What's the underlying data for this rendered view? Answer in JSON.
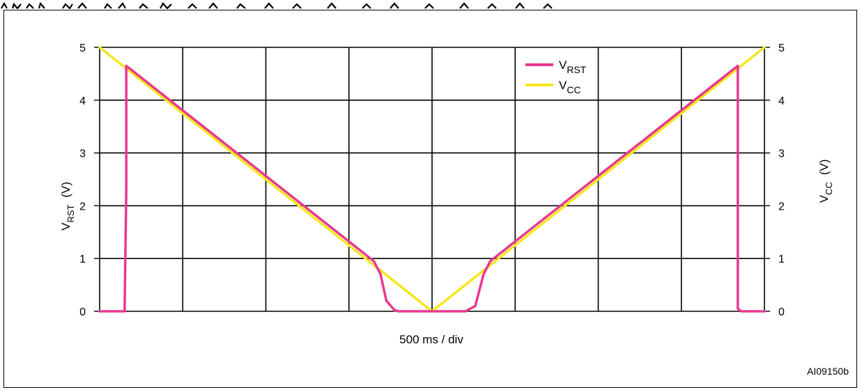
{
  "chart_data": {
    "type": "line",
    "title": "",
    "xlabel": "500 ms / div",
    "ylabel_left": {
      "main": "V",
      "sub": "RST",
      "unit": "(V)"
    },
    "ylabel_right": {
      "main": "V",
      "sub": "CC",
      "unit": "(V)"
    },
    "ylim": [
      0,
      5
    ],
    "yticks": [
      "0",
      "1",
      "2",
      "3",
      "4",
      "5"
    ],
    "x_divisions": 8,
    "x_range_div": [
      0,
      8
    ],
    "grid": true,
    "legend_position": "top-center",
    "series": [
      {
        "name": "V_RST",
        "name_main": "V",
        "name_sub": "RST",
        "color": "#e8388f",
        "x": [
          0,
          0.3,
          0.32,
          0.32,
          3.3,
          3.38,
          3.45,
          3.55,
          3.6,
          4.0,
          4.4,
          4.52,
          4.62,
          4.7,
          7.68,
          7.68,
          7.72,
          8.0
        ],
        "y": [
          0,
          0,
          2.3,
          4.65,
          0.95,
          0.7,
          0.2,
          0.02,
          0,
          0,
          0,
          0.1,
          0.7,
          0.95,
          4.65,
          0.05,
          0,
          0
        ]
      },
      {
        "name": "V_CC",
        "name_main": "V",
        "name_sub": "CC",
        "color": "#f7e51f",
        "x": [
          0,
          4,
          8
        ],
        "y": [
          5,
          0,
          5
        ]
      }
    ]
  },
  "ref_code": "AI09150b"
}
